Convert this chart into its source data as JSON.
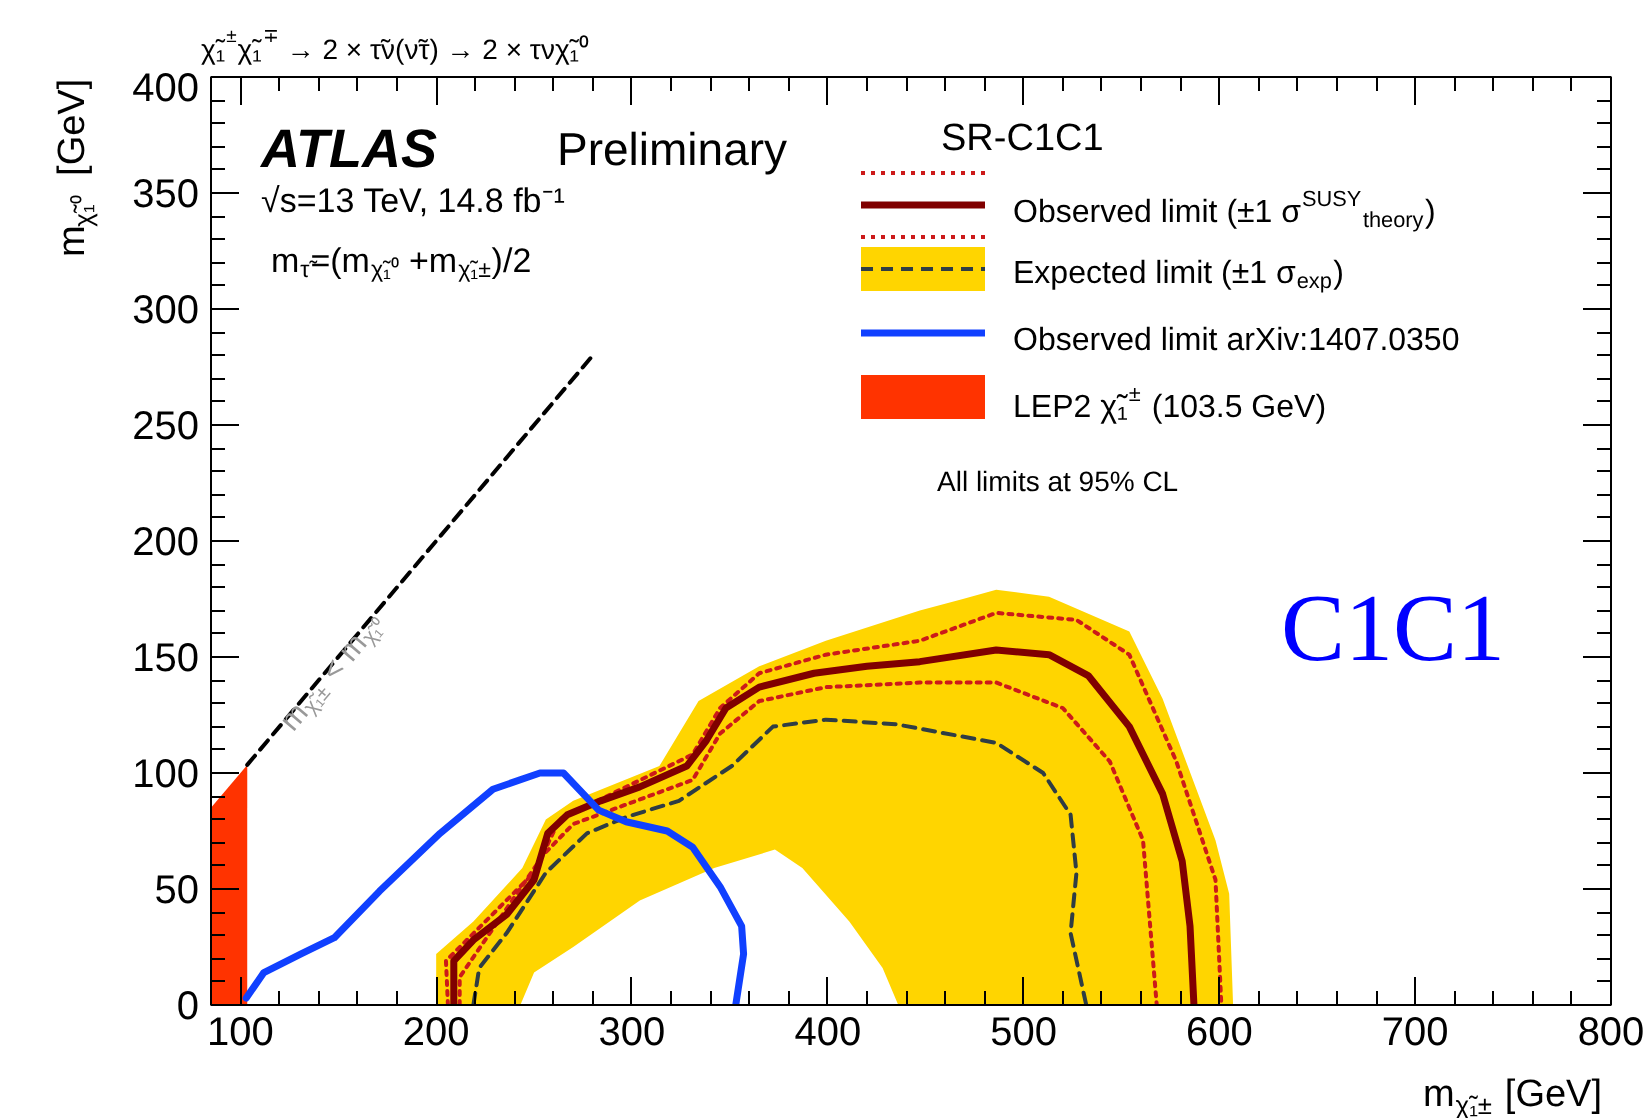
{
  "chart_data": {
    "type": "line",
    "title": "χ̃₁$^{±}$χ̃₁$^{∓}$ → 2 × τ̃ν(ν̃τ) → 2 × τνχ̃₁⁰",
    "xlabel": "m$_{χ̃₁±}$ [GeV]",
    "ylabel": "m$_{χ̃₁⁰}$ [GeV]",
    "xlim": [
      85,
      800
    ],
    "ylim": [
      0,
      400
    ],
    "xticks": [
      100,
      200,
      300,
      400,
      500,
      600,
      700,
      800
    ],
    "yticks": [
      0,
      50,
      100,
      150,
      200,
      250,
      300,
      350,
      400
    ],
    "grid": false,
    "legend": "top right",
    "annotations": [
      "ATLAS",
      "Preliminary",
      "√s=13 TeV, 14.8 fb⁻¹",
      "m$_{τ̃}$=(m$_{χ̃₁⁰}$+m$_{χ̃₁±}$)/2",
      "SR-C1C1",
      "All limits at 95% CL",
      "C1C1",
      "m$_{χ̃₁±}$ < m$_{χ̃₁⁰}$"
    ],
    "series": [
      {
        "color": "#cc1a1a",
        "line_style": "dotted",
        "x": [
          206,
          205,
          250,
          263,
          331,
          345,
          365,
          399,
          447,
          486,
          527,
          554,
          578,
          598,
          601
        ],
        "values": [
          0,
          19,
          57,
          80,
          108,
          128,
          143,
          151,
          157,
          169,
          166,
          151,
          105,
          54,
          0
        ]
      },
      {
        "color": "#cc1a1a",
        "line_style": "dotted",
        "x": [
          212,
          212,
          255,
          270,
          331,
          345,
          365,
          399,
          447,
          486,
          520,
          544,
          561,
          568
        ],
        "values": [
          0,
          12,
          65,
          78,
          97,
          117,
          131,
          137,
          139,
          139,
          128,
          105,
          71,
          0
        ]
      },
      {
        "name": "Observed limit (±1 σ$^{SUSY}$$_{theory}$)",
        "color": "#800000",
        "line_style": "solid",
        "x": [
          209,
          209,
          219,
          236,
          250,
          257,
          267,
          284,
          304,
          328,
          338,
          348,
          365,
          393,
          420,
          447,
          486,
          513,
          533,
          554,
          571,
          581,
          585,
          587
        ],
        "values": [
          0,
          19,
          28,
          39,
          54,
          74,
          82,
          88,
          94,
          103,
          114,
          128,
          137,
          143,
          146,
          148,
          153,
          151,
          142,
          120,
          91,
          62,
          34,
          0
        ]
      },
      {
        "type": "area",
        "color": "#ffd500",
        "x": [
          200,
          200,
          219,
          244,
          256,
          270,
          314,
          324,
          334,
          365,
          399,
          447,
          469,
          486,
          513,
          554,
          571,
          598,
          605,
          607,
          436,
          428,
          411,
          387,
          373,
          342,
          304,
          270,
          250,
          243
        ],
        "values": [
          0,
          22,
          36,
          59,
          80,
          88,
          103,
          117,
          131,
          146,
          157,
          170,
          175,
          179,
          176,
          161,
          132,
          71,
          48,
          0,
          0,
          16,
          36,
          59,
          67,
          59,
          45,
          25,
          14,
          0
        ]
      },
      {
        "name": "Expected limit (±1 σ$_{exp}$)",
        "color": "#2f3d44",
        "line_style": "dashed",
        "x": [
          219,
          222,
          236,
          256,
          277,
          297,
          324,
          351,
          372,
          399,
          435,
          486,
          510,
          524,
          527,
          524,
          532
        ],
        "values": [
          0,
          16,
          31,
          57,
          74,
          81,
          88,
          103,
          120,
          123,
          121,
          113,
          100,
          82,
          57,
          31,
          0
        ]
      },
      {
        "name": "Observed limit arXiv:1407.0350",
        "color": "#1040ff",
        "line_style": "solid",
        "x": [
          103,
          112,
          131,
          148,
          171,
          202,
          229,
          253,
          265,
          283,
          297,
          318,
          331,
          345,
          356,
          357,
          353
        ],
        "values": [
          3,
          14,
          22,
          29,
          49,
          74,
          93,
          100,
          100,
          84,
          79,
          75,
          68,
          51,
          34,
          22,
          0
        ]
      },
      {
        "type": "area",
        "name": "LEP2 χ̃₁$^{±}$ (103.5 GeV)",
        "color": "#ff3300",
        "x": [
          85,
          85,
          103.5,
          103.5
        ],
        "values": [
          0,
          85,
          103.5,
          0
        ]
      },
      {
        "color": "#000000",
        "line_style": "dashed",
        "x": [
          103.5,
          280
        ],
        "values": [
          103.5,
          280
        ]
      }
    ]
  }
}
